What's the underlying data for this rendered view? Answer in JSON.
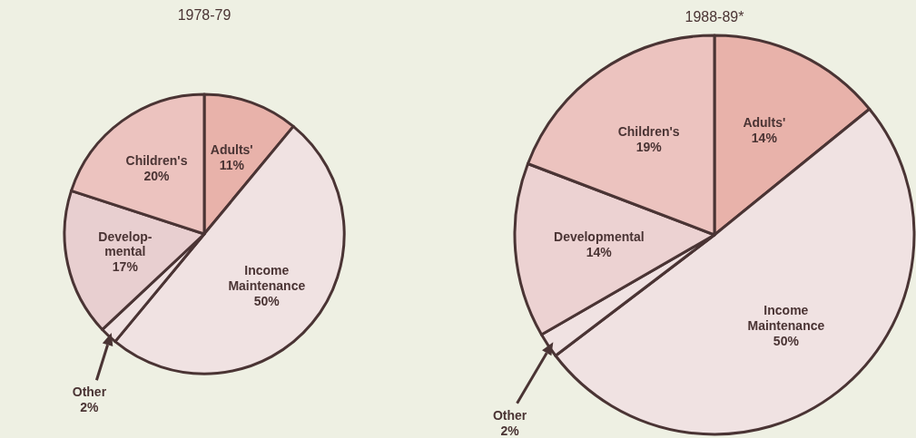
{
  "chart_data": [
    {
      "type": "pie",
      "title": "1978-79",
      "categories": [
        "Adults'",
        "Income\nMaintenance",
        "Other",
        "Develop-\nmental",
        "Children's"
      ],
      "values": [
        11,
        50,
        2,
        17,
        20
      ],
      "value_labels": [
        "11%",
        "50%",
        "2%",
        "17%",
        "20%"
      ],
      "colors": [
        "#e8b2aa",
        "#f0e2e2",
        "#f0e2e2",
        "#e8cfd0",
        "#ecc3bf"
      ]
    },
    {
      "type": "pie",
      "title": "1988-89*",
      "categories": [
        "Adults'",
        "Income\nMaintenance",
        "Other",
        "Developmental",
        "Children's"
      ],
      "values": [
        14,
        50,
        2,
        14,
        19
      ],
      "value_labels": [
        "14%",
        "50%",
        "2%",
        "14%",
        "19%"
      ],
      "colors": [
        "#e8b2aa",
        "#f0e2e2",
        "#f0e2e2",
        "#ecd2d2",
        "#ecc3bf"
      ]
    }
  ]
}
